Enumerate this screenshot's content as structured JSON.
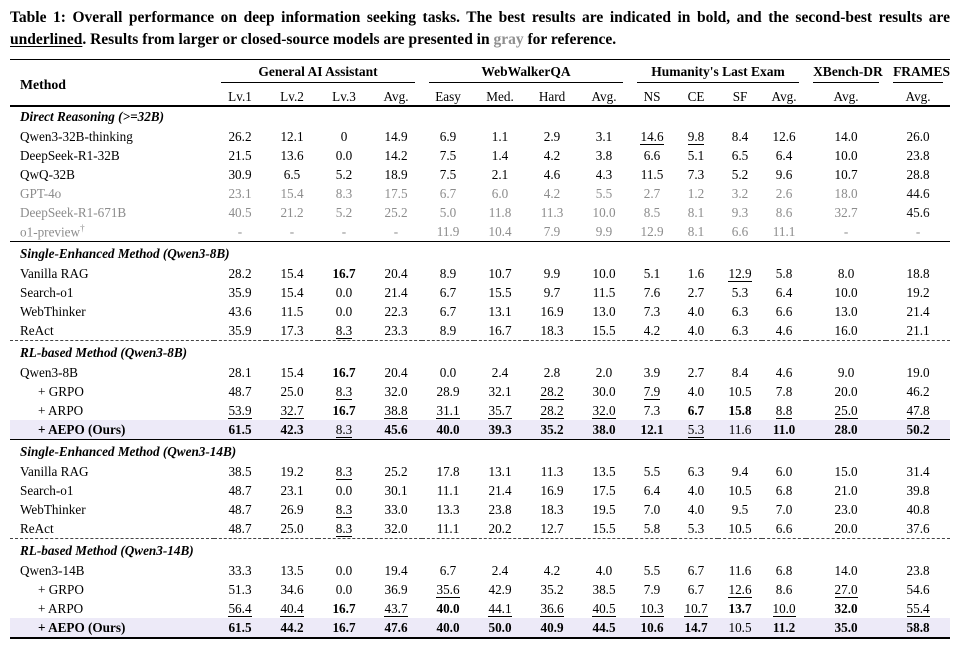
{
  "caption": {
    "p1": "Table 1: Overall performance on deep information seeking tasks. The best results are indicated in bold, and the second-best results are ",
    "p2": "underlined",
    "p3": ". Results from larger or closed-source models are presented in ",
    "p4": "gray",
    "p5": " for reference."
  },
  "colors": {
    "highlight_row_bg": "#edeaf8",
    "reference_gray": "#8c8c8c"
  },
  "table": {
    "method_label": "Method",
    "groups": [
      {
        "label": "General AI Assistant",
        "cols": [
          "Lv.1",
          "Lv.2",
          "Lv.3",
          "Avg."
        ]
      },
      {
        "label": "WebWalkerQA",
        "cols": [
          "Easy",
          "Med.",
          "Hard",
          "Avg."
        ]
      },
      {
        "label": "Humanity's Last Exam",
        "cols": [
          "NS",
          "CE",
          "SF",
          "Avg."
        ]
      },
      {
        "label": "XBench-DR",
        "cols": [
          "Avg."
        ]
      },
      {
        "label": "FRAMES",
        "cols": [
          "Avg."
        ]
      }
    ],
    "sections": [
      {
        "title": "Direct Reasoning (>=32B)",
        "separator": "none",
        "rows": [
          {
            "method": "Qwen3-32B-thinking",
            "cells": [
              "26.2",
              "12.1",
              "0",
              "14.9",
              "6.9",
              "1.1",
              "2.9",
              "3.1",
              {
                "t": "14.6",
                "f": "u"
              },
              {
                "t": "9.8",
                "f": "u"
              },
              "8.4",
              "12.6",
              "14.0",
              "26.0"
            ]
          },
          {
            "method": "DeepSeek-R1-32B",
            "cells": [
              "21.5",
              "13.6",
              "0.0",
              "14.2",
              "7.5",
              "1.4",
              "4.2",
              "3.8",
              "6.6",
              "5.1",
              "6.5",
              "6.4",
              "10.0",
              "23.8"
            ]
          },
          {
            "method": "QwQ-32B",
            "cells": [
              "30.9",
              "6.5",
              "5.2",
              "18.9",
              "7.5",
              "2.1",
              "4.6",
              "4.3",
              "11.5",
              "7.3",
              "5.2",
              "9.6",
              "10.7",
              "28.8"
            ]
          },
          {
            "method": "GPT-4o",
            "gray": true,
            "cells": [
              "23.1",
              "15.4",
              "8.3",
              "17.5",
              "6.7",
              "6.0",
              "4.2",
              "5.5",
              "2.7",
              "1.2",
              "3.2",
              "2.6",
              "18.0",
              {
                "t": "44.6",
                "f": "k"
              }
            ]
          },
          {
            "method": "DeepSeek-R1-671B",
            "gray": true,
            "cells": [
              "40.5",
              "21.2",
              "5.2",
              "25.2",
              "5.0",
              "11.8",
              "11.3",
              "10.0",
              "8.5",
              "8.1",
              "9.3",
              "8.6",
              "32.7",
              {
                "t": "45.6",
                "f": "k"
              }
            ]
          },
          {
            "method": "o1-preview",
            "sup": "†",
            "gray": true,
            "cells": [
              "-",
              "-",
              "-",
              "-",
              "11.9",
              "10.4",
              "7.9",
              "9.9",
              "12.9",
              "8.1",
              "6.6",
              "11.1",
              "-",
              "-"
            ]
          }
        ]
      },
      {
        "title": "Single-Enhanced Method (Qwen3-8B)",
        "separator": "solid",
        "rows": [
          {
            "method": "Vanilla RAG",
            "cells": [
              "28.2",
              "15.4",
              {
                "t": "16.7",
                "f": "b"
              },
              "20.4",
              "8.9",
              "10.7",
              "9.9",
              "10.0",
              "5.1",
              "1.6",
              {
                "t": "12.9",
                "f": "u"
              },
              "5.8",
              "8.0",
              "18.8"
            ]
          },
          {
            "method": "Search-o1",
            "cells": [
              "35.9",
              "15.4",
              "0.0",
              "21.4",
              "6.7",
              "15.5",
              "9.7",
              "11.5",
              "7.6",
              "2.7",
              "5.3",
              "6.4",
              "10.0",
              "19.2"
            ]
          },
          {
            "method": "WebThinker",
            "cells": [
              "43.6",
              "11.5",
              "0.0",
              "22.3",
              "6.7",
              "13.1",
              "16.9",
              "13.0",
              "7.3",
              "4.0",
              "6.3",
              "6.6",
              "13.0",
              "21.4"
            ]
          },
          {
            "method": "ReAct",
            "cells": [
              "35.9",
              "17.3",
              {
                "t": "8.3",
                "f": "u"
              },
              "23.3",
              "8.9",
              "16.7",
              "18.3",
              "15.5",
              "4.2",
              "4.0",
              "6.3",
              "4.6",
              "16.0",
              "21.1"
            ]
          }
        ]
      },
      {
        "title": "RL-based Method (Qwen3-8B)",
        "separator": "dashed",
        "rows": [
          {
            "method": "Qwen3-8B",
            "cells": [
              "28.1",
              "15.4",
              {
                "t": "16.7",
                "f": "b"
              },
              "20.4",
              "0.0",
              "2.4",
              "2.8",
              "2.0",
              "3.9",
              "2.7",
              "8.4",
              "4.6",
              "9.0",
              "19.0"
            ]
          },
          {
            "method": "+ GRPO",
            "indent": true,
            "cells": [
              "48.7",
              "25.0",
              {
                "t": "8.3",
                "f": "u"
              },
              "32.0",
              "28.9",
              "32.1",
              {
                "t": "28.2",
                "f": "u"
              },
              "30.0",
              {
                "t": "7.9",
                "f": "u"
              },
              "4.0",
              "10.5",
              "7.8",
              "20.0",
              "46.2"
            ]
          },
          {
            "method": "+ ARPO",
            "indent": true,
            "cells": [
              {
                "t": "53.9",
                "f": "u"
              },
              {
                "t": "32.7",
                "f": "u"
              },
              {
                "t": "16.7",
                "f": "b"
              },
              {
                "t": "38.8",
                "f": "u"
              },
              {
                "t": "31.1",
                "f": "u"
              },
              {
                "t": "35.7",
                "f": "u"
              },
              {
                "t": "28.2",
                "f": "u"
              },
              {
                "t": "32.0",
                "f": "u"
              },
              "7.3",
              {
                "t": "6.7",
                "f": "b"
              },
              {
                "t": "15.8",
                "f": "b"
              },
              {
                "t": "8.8",
                "f": "u"
              },
              {
                "t": "25.0",
                "f": "u"
              },
              {
                "t": "47.8",
                "f": "u"
              }
            ]
          },
          {
            "method": "+ AEPO (Ours)",
            "indent": true,
            "mb": true,
            "hl": true,
            "cells": [
              {
                "t": "61.5",
                "f": "b"
              },
              {
                "t": "42.3",
                "f": "b"
              },
              {
                "t": "8.3",
                "f": "u"
              },
              {
                "t": "45.6",
                "f": "b"
              },
              {
                "t": "40.0",
                "f": "b"
              },
              {
                "t": "39.3",
                "f": "b"
              },
              {
                "t": "35.2",
                "f": "b"
              },
              {
                "t": "38.0",
                "f": "b"
              },
              {
                "t": "12.1",
                "f": "b"
              },
              {
                "t": "5.3",
                "f": "u"
              },
              "11.6",
              {
                "t": "11.0",
                "f": "b"
              },
              {
                "t": "28.0",
                "f": "b"
              },
              {
                "t": "50.2",
                "f": "b"
              }
            ]
          }
        ]
      },
      {
        "title": "Single-Enhanced Method (Qwen3-14B)",
        "separator": "solid",
        "rows": [
          {
            "method": "Vanilla RAG",
            "cells": [
              "38.5",
              "19.2",
              {
                "t": "8.3",
                "f": "u"
              },
              "25.2",
              "17.8",
              "13.1",
              "11.3",
              "13.5",
              "5.5",
              "6.3",
              "9.4",
              "6.0",
              "15.0",
              "31.4"
            ]
          },
          {
            "method": "Search-o1",
            "cells": [
              "48.7",
              "23.1",
              "0.0",
              "30.1",
              "11.1",
              "21.4",
              "16.9",
              "17.5",
              "6.4",
              "4.0",
              "10.5",
              "6.8",
              "21.0",
              "39.8"
            ]
          },
          {
            "method": "WebThinker",
            "cells": [
              "48.7",
              "26.9",
              {
                "t": "8.3",
                "f": "u"
              },
              "33.0",
              "13.3",
              "23.8",
              "18.3",
              "19.5",
              "7.0",
              "4.0",
              "9.5",
              "7.0",
              "23.0",
              "40.8"
            ]
          },
          {
            "method": "ReAct",
            "cells": [
              "48.7",
              "25.0",
              {
                "t": "8.3",
                "f": "u"
              },
              "32.0",
              "11.1",
              "20.2",
              "12.7",
              "15.5",
              "5.8",
              "5.3",
              "10.5",
              "6.6",
              "20.0",
              "37.6"
            ]
          }
        ]
      },
      {
        "title": "RL-based Method (Qwen3-14B)",
        "separator": "dashed",
        "rows": [
          {
            "method": "Qwen3-14B",
            "cells": [
              "33.3",
              "13.5",
              "0.0",
              "19.4",
              "6.7",
              "2.4",
              "4.2",
              "4.0",
              "5.5",
              "6.7",
              "11.6",
              "6.8",
              "14.0",
              "23.8"
            ]
          },
          {
            "method": "+ GRPO",
            "indent": true,
            "cells": [
              "51.3",
              "34.6",
              "0.0",
              "36.9",
              {
                "t": "35.6",
                "f": "u"
              },
              "42.9",
              "35.2",
              "38.5",
              "7.9",
              "6.7",
              {
                "t": "12.6",
                "f": "u"
              },
              "8.6",
              {
                "t": "27.0",
                "f": "u"
              },
              "54.6"
            ]
          },
          {
            "method": "+ ARPO",
            "indent": true,
            "cells": [
              {
                "t": "56.4",
                "f": "u"
              },
              {
                "t": "40.4",
                "f": "u"
              },
              {
                "t": "16.7",
                "f": "b"
              },
              {
                "t": "43.7",
                "f": "u"
              },
              {
                "t": "40.0",
                "f": "b"
              },
              {
                "t": "44.1",
                "f": "u"
              },
              {
                "t": "36.6",
                "f": "u"
              },
              {
                "t": "40.5",
                "f": "u"
              },
              {
                "t": "10.3",
                "f": "u"
              },
              {
                "t": "10.7",
                "f": "u"
              },
              {
                "t": "13.7",
                "f": "b"
              },
              {
                "t": "10.0",
                "f": "u"
              },
              {
                "t": "32.0",
                "f": "b"
              },
              {
                "t": "55.4",
                "f": "u"
              }
            ]
          },
          {
            "method": "+ AEPO (Ours)",
            "indent": true,
            "mb": true,
            "hl": true,
            "cells": [
              {
                "t": "61.5",
                "f": "b"
              },
              {
                "t": "44.2",
                "f": "b"
              },
              {
                "t": "16.7",
                "f": "b"
              },
              {
                "t": "47.6",
                "f": "b"
              },
              {
                "t": "40.0",
                "f": "b"
              },
              {
                "t": "50.0",
                "f": "b"
              },
              {
                "t": "40.9",
                "f": "b"
              },
              {
                "t": "44.5",
                "f": "b"
              },
              {
                "t": "10.6",
                "f": "b"
              },
              {
                "t": "14.7",
                "f": "b"
              },
              "10.5",
              {
                "t": "11.2",
                "f": "b"
              },
              {
                "t": "35.0",
                "f": "b"
              },
              {
                "t": "58.8",
                "f": "b"
              }
            ]
          }
        ]
      }
    ],
    "layout": {
      "method_col_width": 204,
      "gaia_col_width": 52,
      "webwalker_col_width": 52,
      "hle_col_width": 44,
      "xbench_col_width": 80,
      "frames_col_width": 64
    }
  }
}
